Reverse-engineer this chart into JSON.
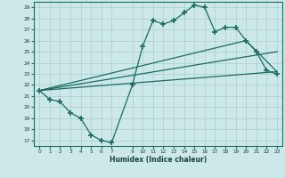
{
  "xlabel": "Humidex (Indice chaleur)",
  "bg_color": "#cce8e8",
  "line_color": "#1a6b60",
  "grid_color": "#aacece",
  "xlim": [
    -0.5,
    23.5
  ],
  "ylim": [
    16.5,
    29.5
  ],
  "xticks": [
    0,
    1,
    2,
    3,
    4,
    5,
    6,
    7,
    9,
    10,
    11,
    12,
    13,
    14,
    15,
    16,
    17,
    18,
    19,
    20,
    21,
    22,
    23
  ],
  "yticks": [
    17,
    18,
    19,
    20,
    21,
    22,
    23,
    24,
    25,
    26,
    27,
    28,
    29
  ],
  "series1_x": [
    0,
    1,
    2,
    3,
    4,
    5,
    6,
    7,
    9,
    10,
    11,
    12,
    13,
    14,
    15,
    16,
    17,
    18,
    19,
    20,
    21,
    22,
    23
  ],
  "series1_y": [
    21.5,
    20.7,
    20.5,
    19.5,
    19.0,
    17.5,
    17.0,
    16.8,
    22.0,
    25.5,
    27.8,
    27.5,
    27.8,
    28.5,
    29.2,
    29.0,
    26.8,
    27.2,
    27.2,
    26.0,
    25.0,
    23.3,
    23.0
  ],
  "line1_x": [
    0,
    23
  ],
  "line1_y": [
    21.5,
    23.2
  ],
  "line2_x": [
    0,
    23
  ],
  "line2_y": [
    21.5,
    25.0
  ],
  "line3_x": [
    0,
    20,
    23
  ],
  "line3_y": [
    21.5,
    26.0,
    23.2
  ]
}
